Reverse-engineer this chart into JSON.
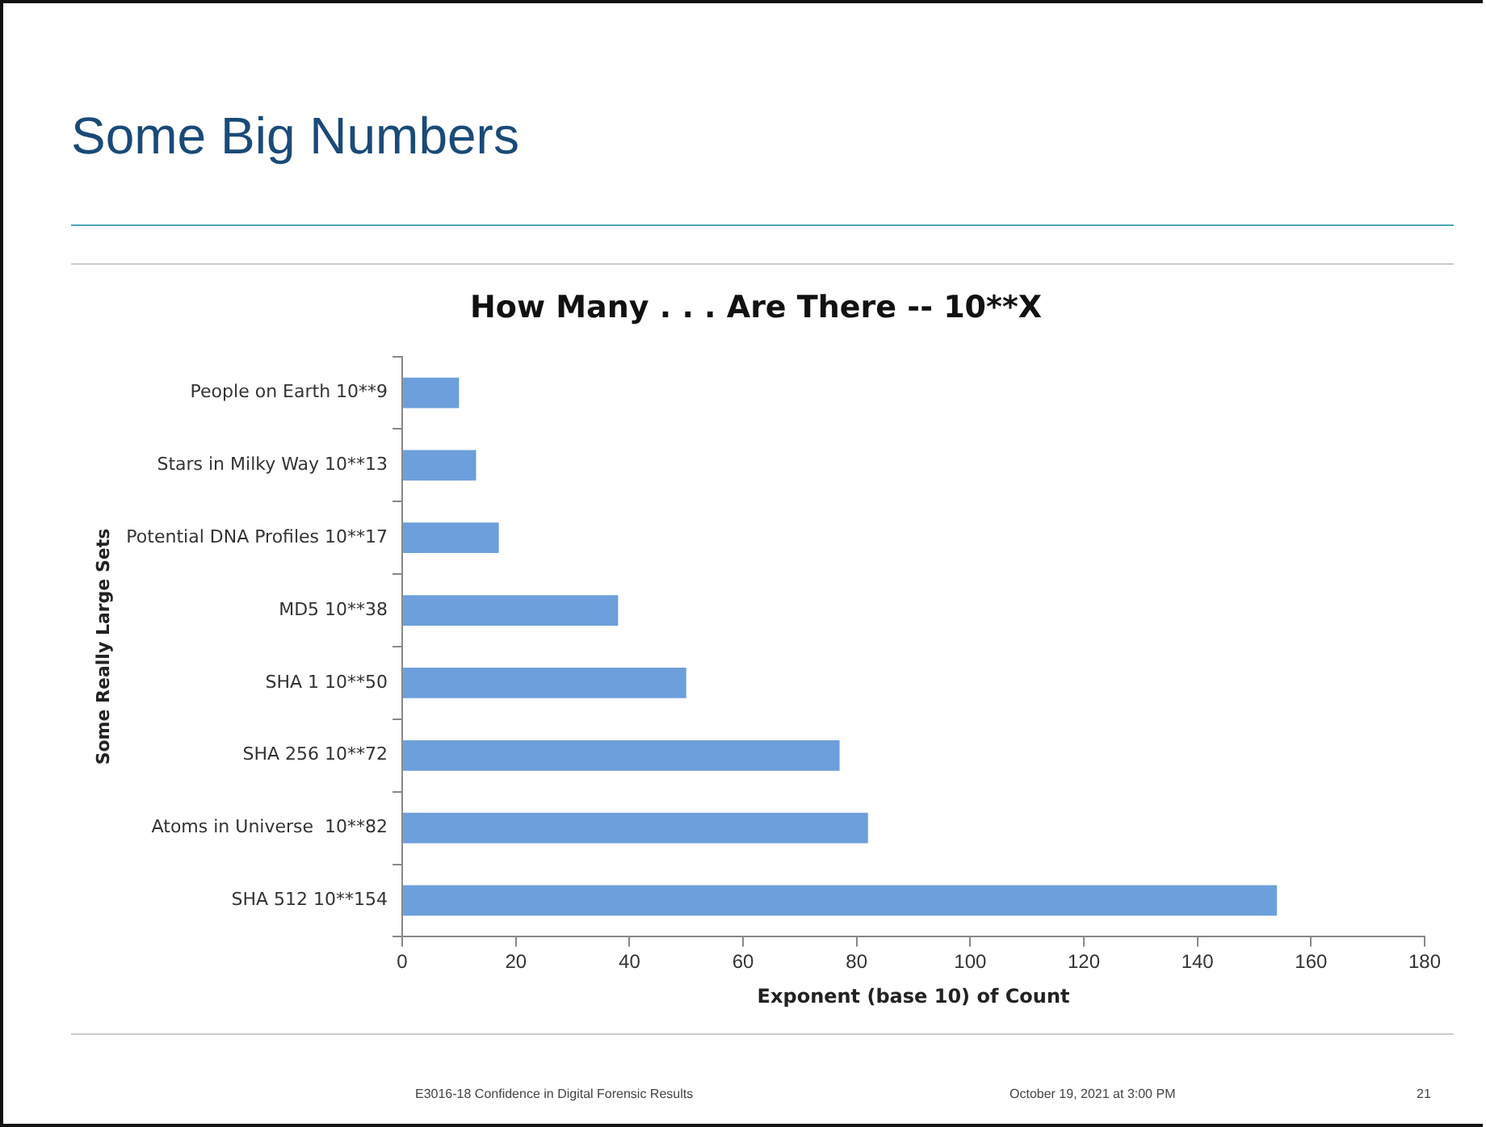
{
  "chart_data": {
    "type": "bar",
    "orientation": "horizontal",
    "title": "Some Big Numbers",
    "subtitle": "How Many . . . Are There -- 10**X",
    "xlabel": "Exponent (base 10) of Count",
    "ylabel": "Some Really Large Sets",
    "categories": [
      "People on Earth 10**9",
      "Stars in Milky Way 10**13",
      "Potential DNA Profiles 10**17",
      "MD5 10**38",
      "SHA 1 10**50",
      "SHA 256 10**72",
      "Atoms in Universe  10**82",
      "SHA 512 10**154"
    ],
    "values": [
      10,
      13,
      17,
      38,
      50,
      77,
      82,
      154
    ],
    "color": "#6c9fdb",
    "xlim": [
      0,
      180
    ],
    "xticks": [
      0,
      20,
      40,
      60,
      80,
      100,
      120,
      140,
      160,
      180
    ],
    "grid": false,
    "annotations": [
      "E3016-18 Confidence in Digital Forensic Results",
      "October 19, 2021 at 3:00 PM",
      "21"
    ]
  }
}
